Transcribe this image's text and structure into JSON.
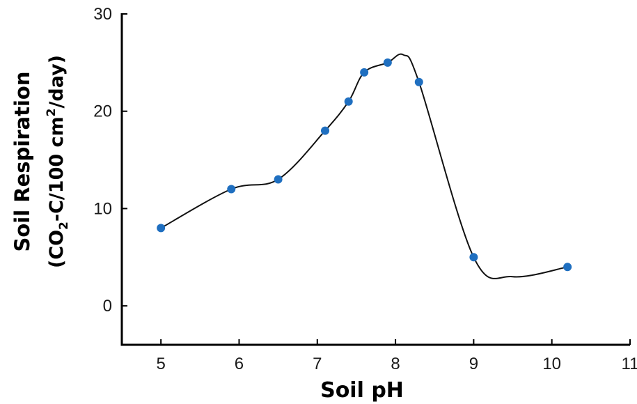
{
  "chart_data": {
    "type": "line",
    "title": "",
    "xlabel": "Soil pH",
    "ylabel_line1": "Soil Respiration",
    "ylabel_line2": {
      "open": "(CO",
      "sub": "2",
      "mid": "-C/100 cm",
      "sup": "2",
      "close": "/day)"
    },
    "xlim": [
      4.5,
      11
    ],
    "ylim": [
      -4,
      30
    ],
    "x_ticks": [
      5,
      6,
      7,
      8,
      9,
      10,
      11
    ],
    "y_ticks": [
      0,
      10,
      20,
      30
    ],
    "grid": false,
    "legend": "none",
    "series": [
      {
        "x": [
          5.0,
          5.9,
          6.5,
          7.1,
          7.4,
          7.6,
          7.9,
          8.3,
          9.0,
          10.2
        ],
        "y": [
          8,
          12,
          13,
          18,
          21,
          24,
          25,
          23,
          5,
          4
        ]
      }
    ],
    "curve": {
      "x": [
        5.0,
        5.9,
        6.5,
        7.1,
        7.4,
        7.6,
        7.9,
        8.1,
        8.3,
        9.0,
        9.5,
        10.2
      ],
      "y": [
        8,
        12,
        13,
        18,
        21,
        24,
        25,
        25.8,
        23,
        5,
        3,
        4
      ]
    },
    "colors": {
      "marker": "#1f6fc0",
      "line": "#111111",
      "axis": "#000000"
    }
  }
}
